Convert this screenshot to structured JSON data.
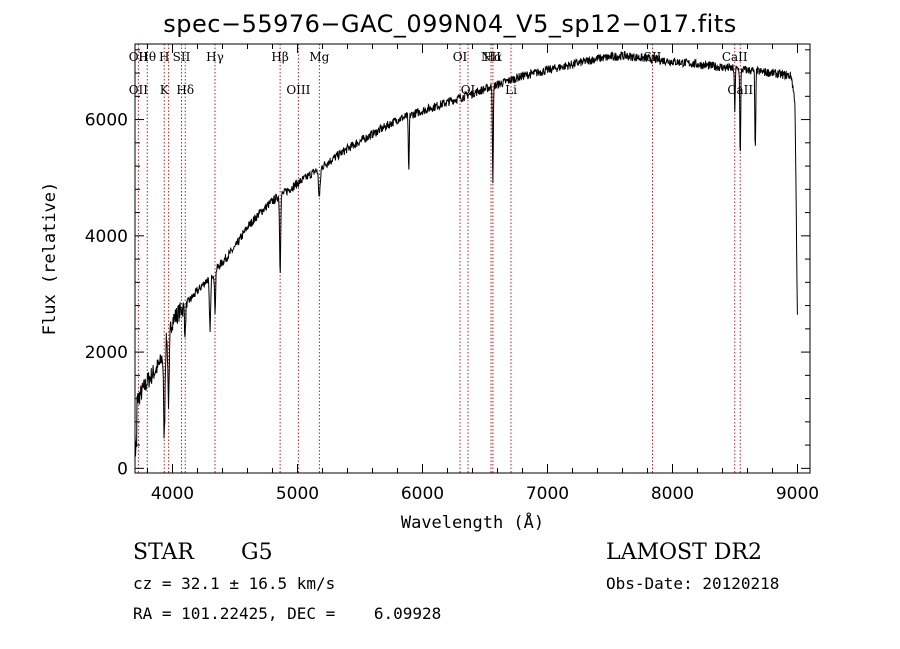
{
  "chart_data": {
    "type": "line",
    "title": "spec−55976−GAC_099N04_V5_sp12−017.fits",
    "xlabel": "Wavelength (Å)",
    "ylabel": "Flux (relative)",
    "xlim": [
      3700,
      9100
    ],
    "ylim": [
      -80,
      7300
    ],
    "xticks": [
      4000,
      5000,
      6000,
      7000,
      8000,
      9000
    ],
    "yticks": [
      0,
      2000,
      4000,
      6000
    ],
    "continuum": [
      [
        3700,
        1100
      ],
      [
        3800,
        1500
      ],
      [
        3900,
        1800
      ],
      [
        3950,
        2200
      ],
      [
        4000,
        2550
      ],
      [
        4100,
        2800
      ],
      [
        4200,
        3050
      ],
      [
        4300,
        3300
      ],
      [
        4400,
        3550
      ],
      [
        4500,
        3800
      ],
      [
        4600,
        4150
      ],
      [
        4700,
        4400
      ],
      [
        4800,
        4600
      ],
      [
        4900,
        4750
      ],
      [
        5000,
        4900
      ],
      [
        5200,
        5200
      ],
      [
        5400,
        5500
      ],
      [
        5600,
        5750
      ],
      [
        5800,
        6000
      ],
      [
        6000,
        6150
      ],
      [
        6200,
        6300
      ],
      [
        6400,
        6450
      ],
      [
        6600,
        6600
      ],
      [
        6800,
        6750
      ],
      [
        7000,
        6850
      ],
      [
        7200,
        6950
      ],
      [
        7400,
        7050
      ],
      [
        7600,
        7100
      ],
      [
        7800,
        7050
      ],
      [
        8000,
        7000
      ],
      [
        8200,
        6950
      ],
      [
        8400,
        6900
      ],
      [
        8600,
        6850
      ],
      [
        8800,
        6800
      ],
      [
        8950,
        6750
      ],
      [
        8980,
        6300
      ],
      [
        9000,
        2400
      ]
    ],
    "absorption_lines": [
      {
        "center": 3934,
        "depth": 1500,
        "width": 8
      },
      {
        "center": 3969,
        "depth": 1200,
        "width": 8
      },
      {
        "center": 4101,
        "depth": 500,
        "width": 6
      },
      {
        "center": 4300,
        "depth": 900,
        "width": 8
      },
      {
        "center": 4340,
        "depth": 700,
        "width": 6
      },
      {
        "center": 4861,
        "depth": 1300,
        "width": 6
      },
      {
        "center": 5175,
        "depth": 500,
        "width": 10
      },
      {
        "center": 5890,
        "depth": 1000,
        "width": 5
      },
      {
        "center": 6563,
        "depth": 1600,
        "width": 5
      },
      {
        "center": 8498,
        "depth": 700,
        "width": 5
      },
      {
        "center": 8542,
        "depth": 1500,
        "width": 5
      },
      {
        "center": 8662,
        "depth": 1400,
        "width": 5
      }
    ],
    "noise_amplitude": 150,
    "reference_lines": [
      {
        "wavelength": 3727,
        "upper": "OII",
        "lower": "OII"
      },
      {
        "wavelength": 3798,
        "upper": "Hθ",
        "lower": ""
      },
      {
        "wavelength": 3934,
        "upper": "H",
        "lower": "K"
      },
      {
        "wavelength": 3969,
        "upper": "",
        "lower": ""
      },
      {
        "wavelength": 4072,
        "upper": "SII",
        "lower": ""
      },
      {
        "wavelength": 4102,
        "upper": "",
        "lower": "Hδ"
      },
      {
        "wavelength": 4340,
        "upper": "Hγ",
        "lower": ""
      },
      {
        "wavelength": 4861,
        "upper": "Hβ",
        "lower": ""
      },
      {
        "wavelength": 5007,
        "upper": "",
        "lower": "OIII"
      },
      {
        "wavelength": 5175,
        "upper": "Mg",
        "lower": ""
      },
      {
        "wavelength": 6300,
        "upper": "OI",
        "lower": ""
      },
      {
        "wavelength": 6364,
        "upper": "",
        "lower": "OI"
      },
      {
        "wavelength": 6548,
        "upper": "NII",
        "lower": ""
      },
      {
        "wavelength": 6563,
        "upper": "Hα",
        "lower": ""
      },
      {
        "wavelength": 6708,
        "upper": "",
        "lower": "Li"
      },
      {
        "wavelength": 7840,
        "upper": "SII",
        "lower": ""
      },
      {
        "wavelength": 8498,
        "upper": "CaII",
        "lower": ""
      },
      {
        "wavelength": 8542,
        "upper": "",
        "lower": "CaII"
      }
    ],
    "grid": false
  },
  "info": {
    "object_type": "STAR",
    "subclass": "G5",
    "survey": "LAMOST DR2",
    "redshift": "cz = 32.1 ± 16.5 km/s",
    "obs_date": "Obs-Date: 20120218",
    "coords": "RA = 101.22425, DEC =    6.09928"
  },
  "colors": {
    "spectrum": "#000000",
    "reference_line": "#b22222",
    "axis": "#000000"
  }
}
